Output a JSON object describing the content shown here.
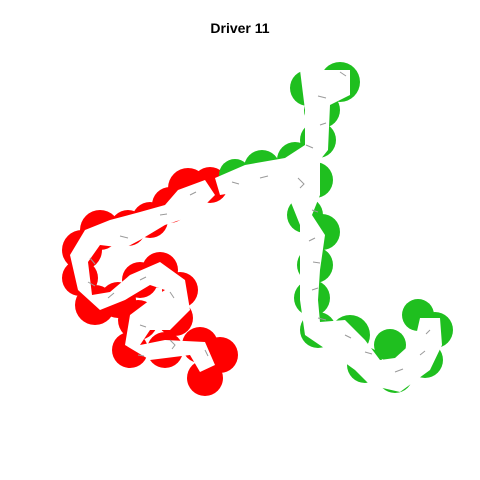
{
  "title": "Driver 11",
  "colors": {
    "background": "#ffffff",
    "red": "#ff0000",
    "green": "#1fbf1f",
    "inner": "#ffffff",
    "trace": "#9a9a9a",
    "title": "#000000"
  },
  "segments": [
    {
      "name": "red-segment",
      "color": "red"
    },
    {
      "name": "green-segment",
      "color": "green"
    }
  ]
}
